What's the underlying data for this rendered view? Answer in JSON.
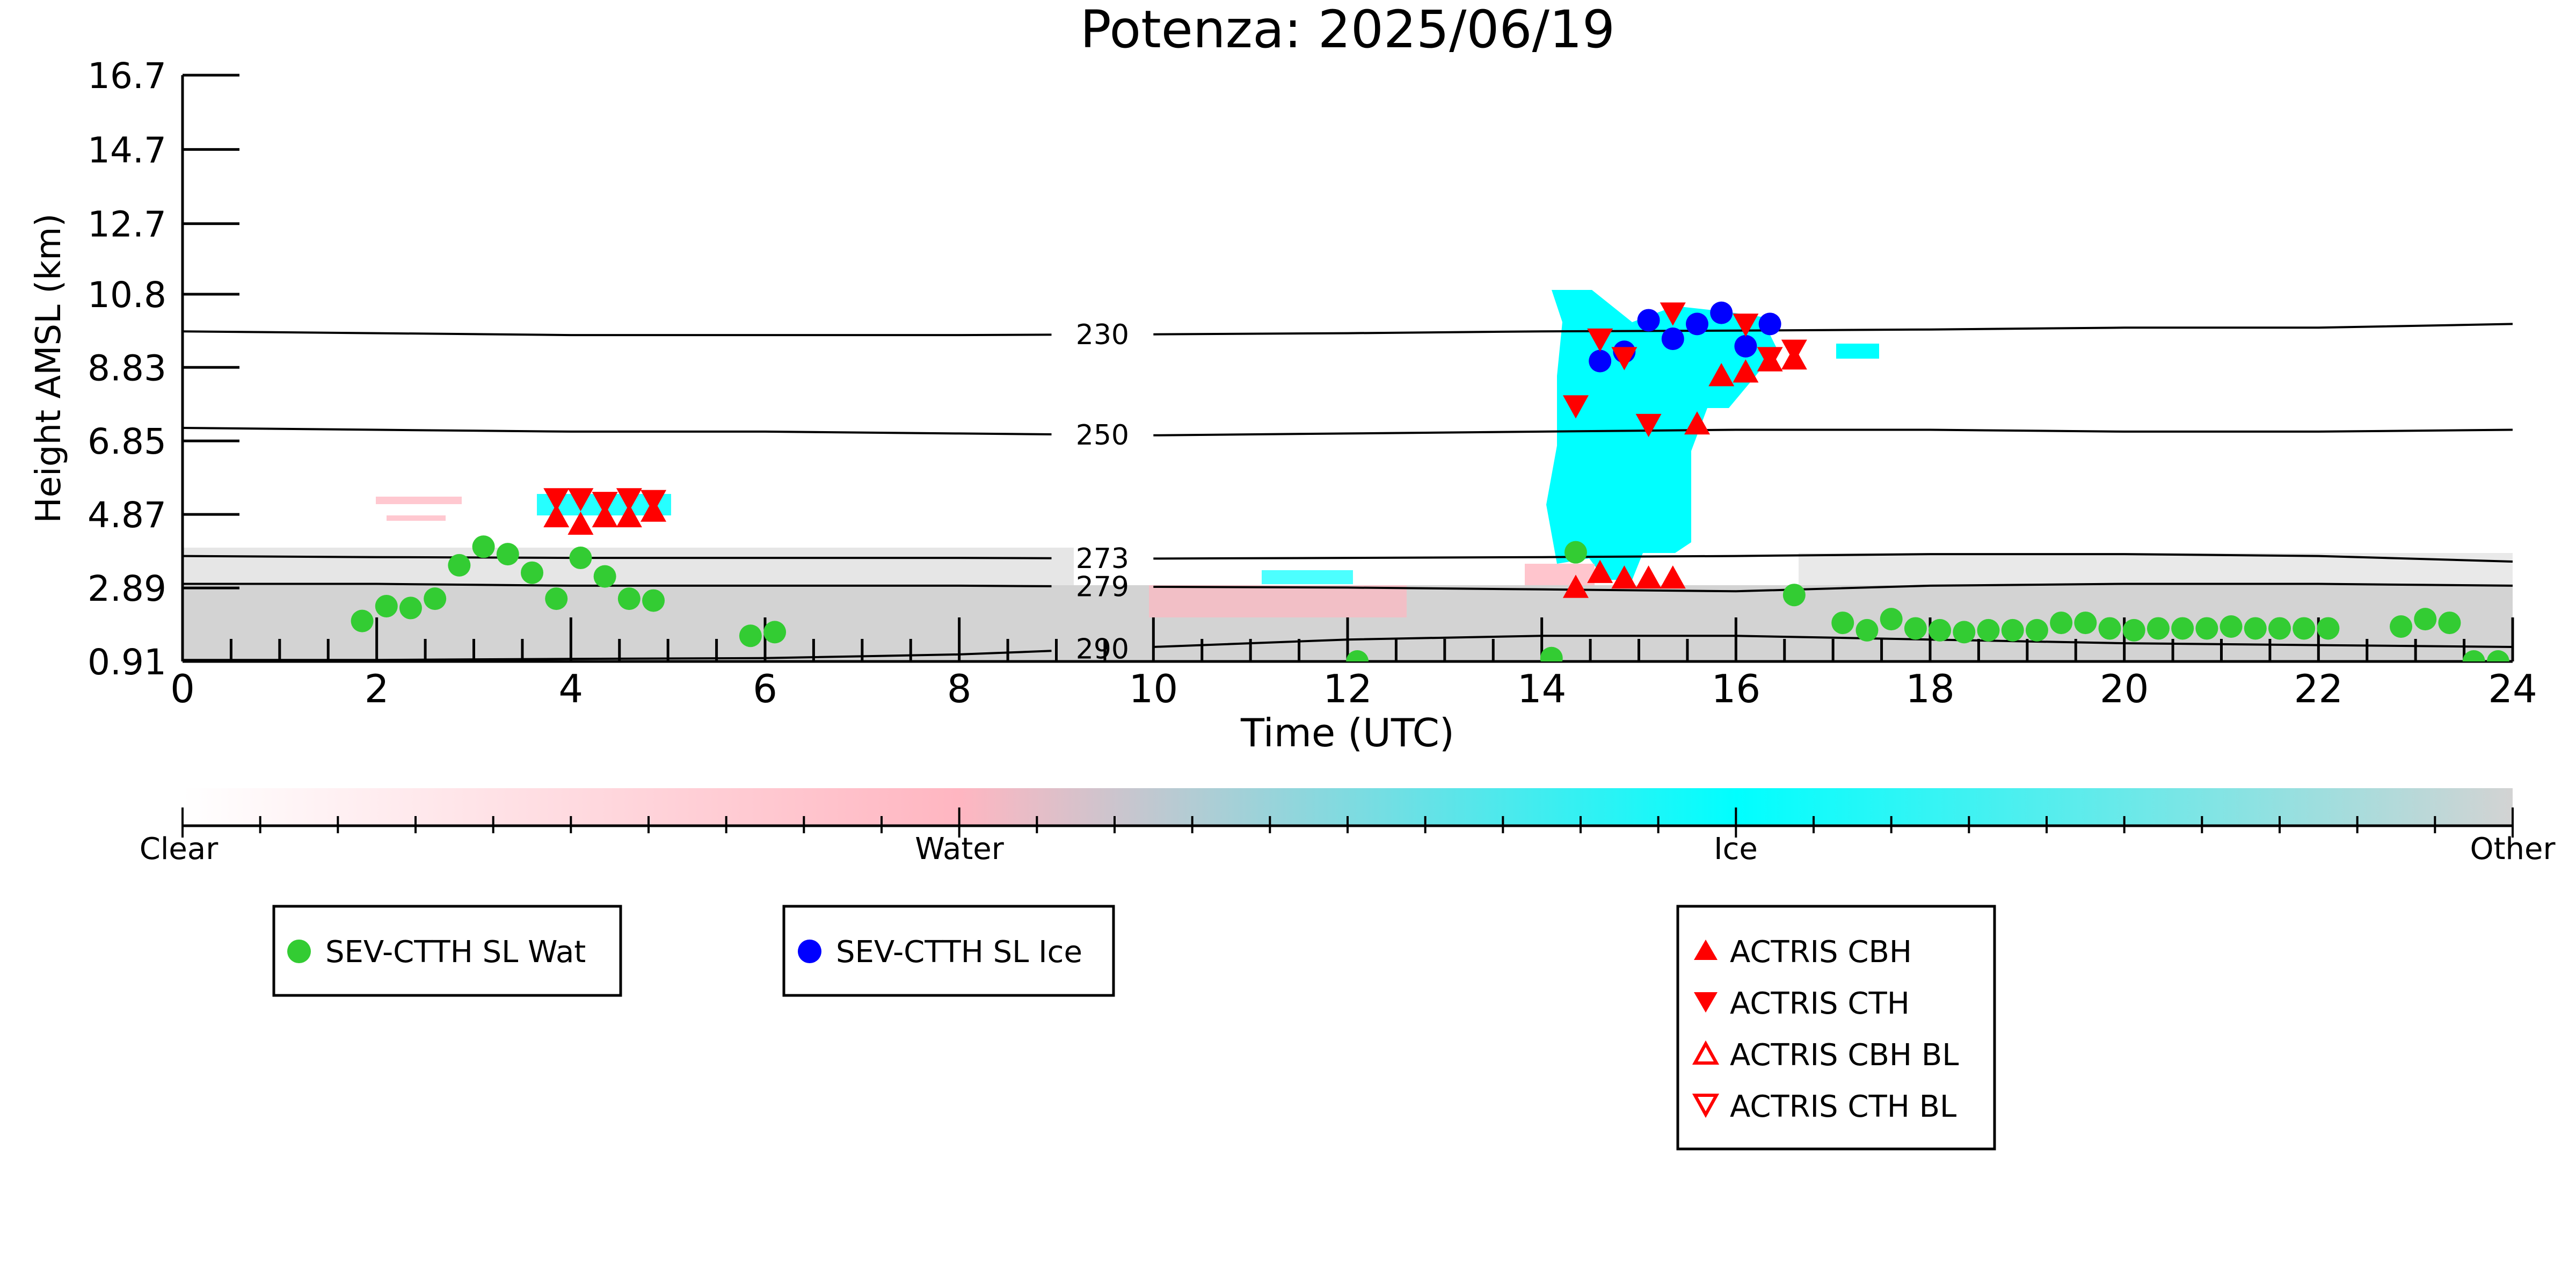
{
  "colors": {
    "water_dot": "#33cc33",
    "ice_dot": "#0000ff",
    "actris": "#ff0000",
    "other_gray": "#d3d3d3",
    "water_pink": "#ffb6c1",
    "ice_cyan": "#00ffff"
  },
  "chart_data": {
    "type": "scatter",
    "title": "Potenza: 2025/06/19",
    "xlabel": "Time (UTC)",
    "ylabel": "Height AMSL (km)",
    "xlim": [
      0,
      24
    ],
    "ylim": [
      0.91,
      16.7
    ],
    "xticks": [
      "0",
      "2",
      "4",
      "6",
      "8",
      "10",
      "12",
      "14",
      "16",
      "18",
      "20",
      "22",
      "24"
    ],
    "yticks": [
      "0.91",
      "2.89",
      "4.87",
      "6.85",
      "8.83",
      "10.8",
      "12.7",
      "14.7",
      "16.7"
    ],
    "isotherms": [
      {
        "label": "230",
        "y": [
          9.8,
          9.75,
          9.7,
          9.7,
          9.7,
          9.72,
          9.75,
          9.8,
          9.82,
          9.85,
          9.9,
          9.9,
          10.0
        ]
      },
      {
        "label": "250",
        "y": [
          7.2,
          7.15,
          7.1,
          7.1,
          7.05,
          7.0,
          7.05,
          7.1,
          7.15,
          7.15,
          7.1,
          7.1,
          7.15
        ]
      },
      {
        "label": "273",
        "y": [
          3.75,
          3.72,
          3.7,
          3.7,
          3.7,
          3.68,
          3.7,
          3.72,
          3.75,
          3.8,
          3.8,
          3.75,
          3.6
        ]
      },
      {
        "label": "279",
        "y": [
          3.0,
          3.0,
          2.95,
          2.95,
          2.95,
          2.92,
          2.9,
          2.85,
          2.8,
          2.95,
          3.0,
          3.0,
          2.95
        ]
      },
      {
        "label": "290",
        "y": [
          0.95,
          0.95,
          0.98,
          1.0,
          1.1,
          1.3,
          1.5,
          1.6,
          1.6,
          1.5,
          1.4,
          1.35,
          1.3
        ]
      }
    ],
    "series": [
      {
        "name": "SEV-CTTH SL Wat",
        "marker": "circle",
        "color": "#33cc33",
        "x": [
          1.85,
          2.1,
          2.35,
          2.6,
          2.85,
          3.1,
          3.35,
          3.6,
          3.85,
          4.1,
          4.35,
          4.6,
          4.85,
          5.85,
          6.1,
          12.1,
          14.1,
          14.35,
          16.6,
          17.1,
          17.35,
          17.6,
          17.85,
          18.1,
          18.35,
          18.6,
          18.85,
          19.1,
          19.35,
          19.6,
          19.85,
          20.1,
          20.35,
          20.6,
          20.85,
          21.1,
          21.35,
          21.6,
          21.85,
          22.1,
          22.85,
          23.1,
          23.35,
          23.6,
          23.85
        ],
        "y": [
          2.0,
          2.4,
          2.35,
          2.6,
          3.5,
          4.0,
          3.8,
          3.3,
          2.6,
          3.7,
          3.2,
          2.6,
          2.55,
          1.6,
          1.7,
          0.91,
          1.0,
          3.85,
          2.7,
          1.95,
          1.75,
          2.05,
          1.8,
          1.75,
          1.7,
          1.75,
          1.75,
          1.75,
          1.95,
          1.95,
          1.8,
          1.75,
          1.8,
          1.8,
          1.8,
          1.85,
          1.8,
          1.8,
          1.8,
          1.8,
          1.85,
          2.05,
          1.95,
          0.91,
          0.91
        ]
      },
      {
        "name": "SEV-CTTH SL Ice",
        "marker": "circle",
        "color": "#0000ff",
        "x": [
          14.6,
          14.85,
          15.1,
          15.35,
          15.6,
          15.85,
          16.1,
          16.35
        ],
        "y": [
          9.0,
          9.25,
          10.1,
          9.6,
          10.0,
          10.3,
          9.4,
          10.0
        ]
      },
      {
        "name": "ACTRIS CBH",
        "marker": "triangle-up",
        "color": "#ff0000",
        "x": [
          3.85,
          4.1,
          4.35,
          4.6,
          4.85,
          14.35,
          14.6,
          14.85,
          15.1,
          15.35,
          15.6,
          15.85,
          16.1,
          16.35,
          16.6
        ],
        "y": [
          4.8,
          4.6,
          4.8,
          4.8,
          4.95,
          2.9,
          3.3,
          3.15,
          3.15,
          3.15,
          7.3,
          8.6,
          8.7,
          9.0,
          9.05
        ]
      },
      {
        "name": "ACTRIS CTH",
        "marker": "triangle-down",
        "color": "#ff0000",
        "x": [
          3.85,
          4.1,
          4.35,
          4.6,
          4.85,
          14.35,
          14.6,
          14.85,
          15.1,
          15.35,
          16.1,
          16.35,
          16.6
        ],
        "y": [
          5.3,
          5.3,
          5.2,
          5.3,
          5.25,
          7.8,
          9.6,
          9.1,
          7.3,
          10.3,
          10.0,
          9.1,
          9.3
        ]
      },
      {
        "name": "ACTRIS CBH BL",
        "marker": "triangle-up-open",
        "color": "#ff0000",
        "x": [],
        "y": []
      },
      {
        "name": "ACTRIS CTH BL",
        "marker": "triangle-down-open",
        "color": "#ff0000",
        "x": [],
        "y": []
      }
    ],
    "colorbar": {
      "labels": [
        "Clear",
        "Water",
        "Ice",
        "Other"
      ],
      "colors": [
        "#ffffff",
        "#ffb6c1",
        "#00ffff",
        "#d3d3d3"
      ]
    },
    "legends": [
      {
        "entries": [
          "SEV-CTTH SL Wat"
        ]
      },
      {
        "entries": [
          "SEV-CTTH SL Ice"
        ]
      },
      {
        "entries": [
          "ACTRIS CBH",
          "ACTRIS CTH",
          "ACTRIS CBH BL",
          "ACTRIS CTH BL"
        ]
      }
    ]
  }
}
